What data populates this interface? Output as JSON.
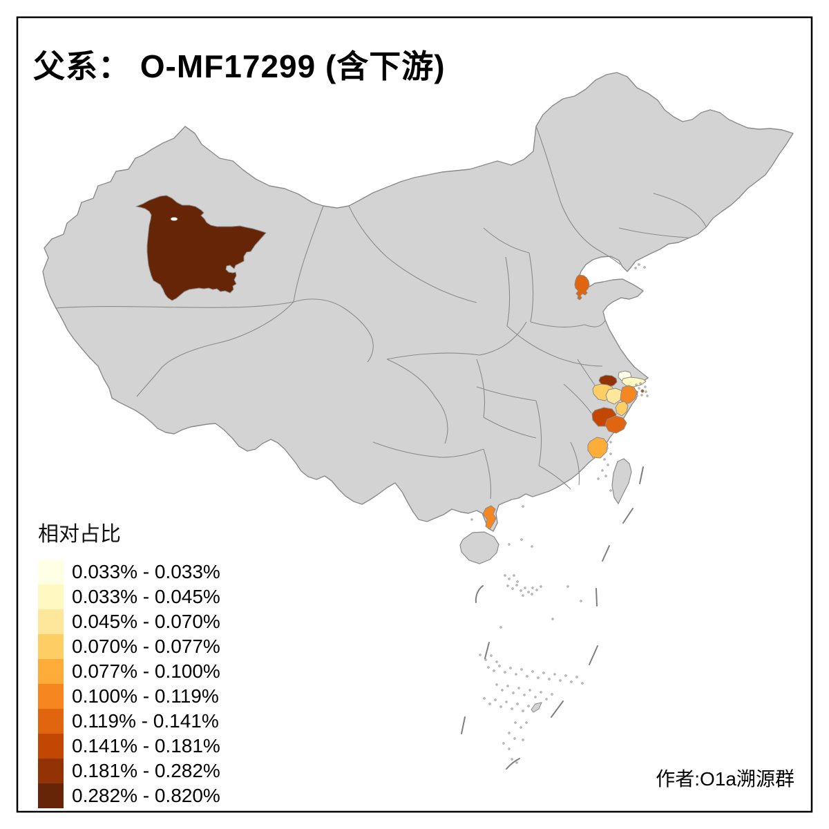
{
  "title": "父系： O-MF17299 (含下游)",
  "legend": {
    "title": "相对占比",
    "entries": [
      {
        "label": "0.033% - 0.033%",
        "color": "#FFFFE5"
      },
      {
        "label": "0.033% - 0.045%",
        "color": "#FFF8C1"
      },
      {
        "label": "0.045% - 0.070%",
        "color": "#FEE79B"
      },
      {
        "label": "0.070% - 0.077%",
        "color": "#FECE65"
      },
      {
        "label": "0.077% - 0.100%",
        "color": "#FEAC3A"
      },
      {
        "label": "0.100% - 0.119%",
        "color": "#F68720"
      },
      {
        "label": "0.119% - 0.141%",
        "color": "#E1640E"
      },
      {
        "label": "0.141% - 0.181%",
        "color": "#C14702"
      },
      {
        "label": "0.181% - 0.282%",
        "color": "#933204"
      },
      {
        "label": "0.282% - 0.820%",
        "color": "#662506"
      }
    ]
  },
  "attribution": "作者:O1a溯源群",
  "map": {
    "base_fill": "#D3D3D3",
    "border_color": "#8A8A8A",
    "sea_color": "#FFFFFF",
    "frame_color": "#000000",
    "regions": [
      {
        "name": "bayingolin-xinjiang",
        "bin": "0.282% - 0.820%",
        "color": "#662506"
      },
      {
        "name": "zibo-shandong",
        "bin": "0.119% - 0.141%",
        "color": "#E1640E"
      },
      {
        "name": "south-jiangsu",
        "bin": "0.181% - 0.282%",
        "color": "#933204"
      },
      {
        "name": "shanghai-west",
        "bin": "0.033% - 0.033%",
        "color": "#FFFFE5"
      },
      {
        "name": "shanghai-east",
        "bin": "0.033% - 0.045%",
        "color": "#FFF8C1"
      },
      {
        "name": "north-zhejiang",
        "bin": "0.070% - 0.077%",
        "color": "#FECE65"
      },
      {
        "name": "hangzhou-jiaxing",
        "bin": "0.045% - 0.070%",
        "color": "#FEE79B"
      },
      {
        "name": "shaoxing-ningbo",
        "bin": "0.100% - 0.119%",
        "color": "#F68720"
      },
      {
        "name": "central-zhejiang-strip",
        "bin": "0.070% - 0.077%",
        "color": "#FECE65"
      },
      {
        "name": "jinhua-zhejiang",
        "bin": "0.141% - 0.181%",
        "color": "#C14702"
      },
      {
        "name": "taizhou-zhejiang",
        "bin": "0.119% - 0.141%",
        "color": "#E1640E"
      },
      {
        "name": "fuzhou-fujian",
        "bin": "0.077% - 0.100%",
        "color": "#FEAC3A"
      },
      {
        "name": "zhanjiang-guangdong",
        "bin": "0.100% - 0.119%",
        "color": "#F68720"
      },
      {
        "name": "zhoushan-islet",
        "bin": "0.141% - 0.181%",
        "color": "#C14702"
      }
    ]
  }
}
